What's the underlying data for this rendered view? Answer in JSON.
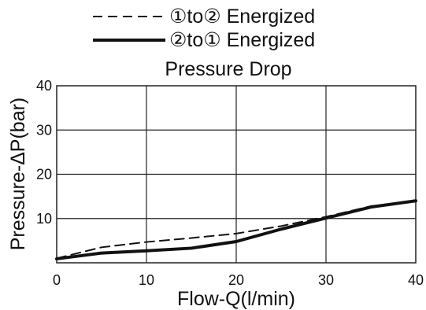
{
  "chart_data": {
    "type": "line",
    "title": "Pressure Drop",
    "xlabel": "Flow-Q(l/min)",
    "ylabel": "Pressure-ΔP(bar)",
    "xlim": [
      0,
      40
    ],
    "ylim": [
      0,
      40
    ],
    "xticks": [
      0,
      10,
      20,
      30,
      40
    ],
    "yticks": [
      10,
      20,
      30,
      40
    ],
    "grid": true,
    "legend_position": "top",
    "series": [
      {
        "name": "①to② Energized",
        "style": "dashed",
        "x": [
          0,
          5,
          10,
          15,
          20,
          25,
          30,
          35,
          40
        ],
        "y": [
          1,
          3.5,
          4.7,
          5.6,
          6.6,
          8.3,
          10.4,
          12.8,
          14
        ]
      },
      {
        "name": "②to① Energized",
        "style": "solid",
        "x": [
          0,
          5,
          10,
          15,
          20,
          25,
          30,
          35,
          40
        ],
        "y": [
          0.9,
          2.2,
          2.7,
          3.3,
          4.8,
          7.6,
          10.1,
          12.6,
          14
        ]
      }
    ]
  }
}
